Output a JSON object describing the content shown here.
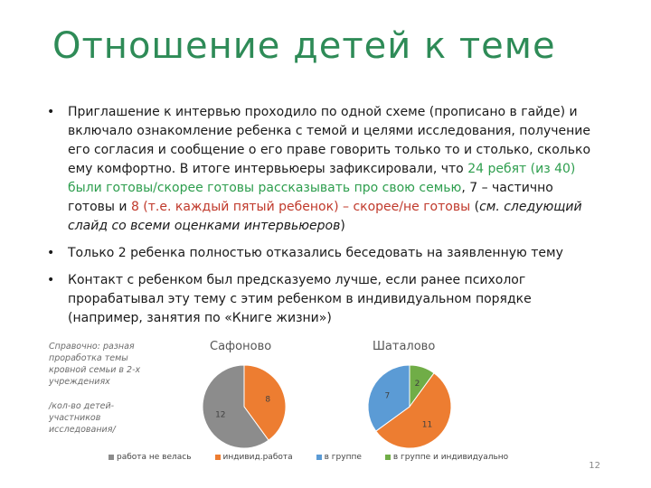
{
  "slide": {
    "title": "Отношение детей к теме",
    "page_number": "12"
  },
  "bullets": {
    "b1": {
      "p1": "Приглашение к интервью проходило по одной схеме (прописано в гайде) и включало ознакомление ребенка с темой и целями исследования, получение его согласия и сообщение о его праве говорить только то и столько, сколько ему комфортно. В итоге интервьюеры зафиксировали, что ",
      "green": "24 ребят (из 40) были готовы/скорее готовы рассказывать про свою семью",
      "p2": ", 7 – частично готовы и ",
      "red": "8 (т.е. каждый пятый ребенок) – скорее/не готовы",
      "p3": " (",
      "italic": "см. следующий слайд со всеми оценками интервьюеров",
      "p4": ")"
    },
    "b2": "Только 2 ребенка полностью отказались беседовать на заявленную тему",
    "b3": "Контакт с ребенком был предсказуемо лучше, если ранее психолог прорабатывал эту тему с этим ребенком в индивидуальном порядке (например, занятия по «Книге жизни»)"
  },
  "footnote": {
    "line1": "Справочно: разная проработка темы кровной семьи в 2-х учреждениях",
    "line2": "/кол-во детей-участников исследования/"
  },
  "chart_data": [
    {
      "type": "pie",
      "title": "Сафоново",
      "series": [
        {
          "name": "индивид.работа",
          "value": 8
        },
        {
          "name": "работа не велась",
          "value": 12
        }
      ]
    },
    {
      "type": "pie",
      "title": "Шаталово",
      "series": [
        {
          "name": "в группе и индивидуально",
          "value": 2
        },
        {
          "name": "индивид.работа",
          "value": 11
        },
        {
          "name": "в группе",
          "value": 7
        }
      ]
    }
  ],
  "legend": [
    {
      "label": "работа не велась",
      "color": "#8c8c8c"
    },
    {
      "label": "индивид.работа",
      "color": "#ed7d31"
    },
    {
      "label": "в группе",
      "color": "#5b9bd5"
    },
    {
      "label": "в группе и индивидуально",
      "color": "#70ad47"
    }
  ],
  "colors": {
    "title": "#2e8b57",
    "highlight_green": "#2e9e4e",
    "highlight_red": "#c0392b"
  }
}
